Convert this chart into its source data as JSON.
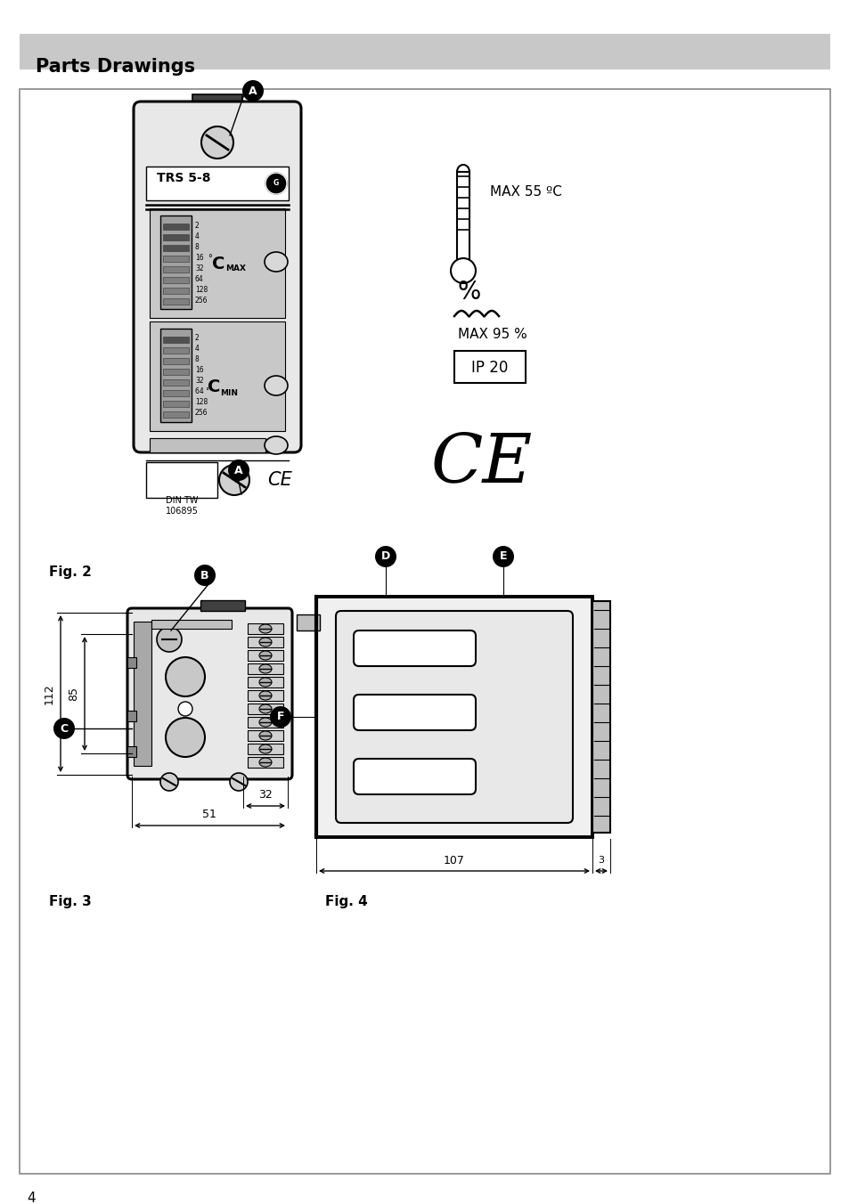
{
  "title": "Parts Drawings",
  "page_number": "4",
  "bg": "#ffffff",
  "header_bg": "#c8c8c8",
  "fig2_label": "Fig. 2",
  "fig3_label": "Fig. 3",
  "fig4_label": "Fig. 4",
  "trs_label": "TRS 5-8",
  "din_label": "DIN TW\n106895",
  "max_temp": "MAX 55 ºC",
  "max_humidity": "MAX 95 %",
  "ip_label": "IP 20",
  "cmax_values": [
    "2",
    "4",
    "8",
    "16",
    "32",
    "64",
    "128",
    "256"
  ],
  "cmin_values": [
    "2",
    "4",
    "8",
    "16",
    "32",
    "64 °",
    "128",
    "256"
  ],
  "dim_32": "32",
  "dim_51": "51",
  "dim_112": "112",
  "dim_85": "85",
  "dim_107": "107",
  "dim_3": "3",
  "lA": "A",
  "lB": "B",
  "lC": "C",
  "lD": "D",
  "lE": "E",
  "lF": "F"
}
